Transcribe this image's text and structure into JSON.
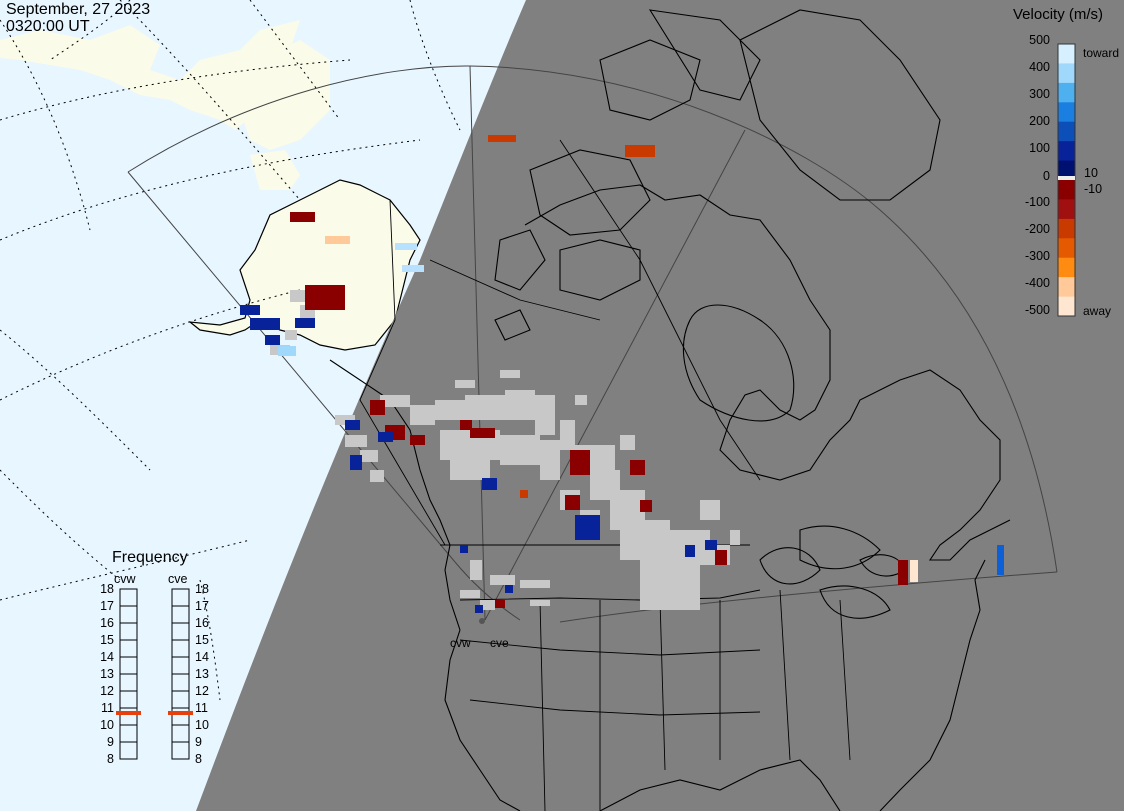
{
  "header": {
    "date": "September, 27 2023",
    "time": "0320:00 UT"
  },
  "colorbar": {
    "title": "Velocity (m/s)",
    "ticks": [
      "500",
      "400",
      "300",
      "200",
      "100",
      "10",
      "0",
      "-10",
      "-100",
      "-200",
      "-300",
      "-400",
      "-500"
    ],
    "toward_label": "toward",
    "away_label": "away",
    "colors": [
      "#d6f0ff",
      "#9fd8fb",
      "#4fb0f0",
      "#1a7fe0",
      "#0d4fb8",
      "#08239a",
      "#001070",
      "#8a0000",
      "#a01010",
      "#c83a00",
      "#e55a00",
      "#ff8c10",
      "#ffc99a",
      "#ffe6d0"
    ]
  },
  "frequency": {
    "title": "Frequency",
    "radars": [
      {
        "name": "cvw",
        "value": 11
      },
      {
        "name": "cve",
        "value": 11
      }
    ],
    "scale": [
      "18",
      "17",
      "16",
      "15",
      "14",
      "13",
      "12",
      "11",
      "10",
      "9",
      "8"
    ],
    "marker_color": "#e8400c"
  },
  "radar_sites": [
    {
      "label": "cvw"
    },
    {
      "label": "cve"
    }
  ],
  "map_colors": {
    "ocean": "#e8f6ff",
    "land_day": "#fbfbea",
    "night_shade": "#808080",
    "no_velocity_scatter": "#c8c8c8"
  }
}
